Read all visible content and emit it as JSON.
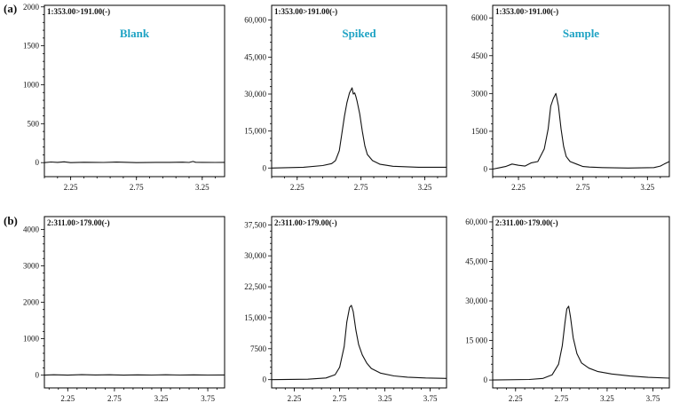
{
  "row_labels": [
    "(a)",
    "(b)"
  ],
  "colors": {
    "title": "#1fa3c4",
    "trace": "#111111"
  },
  "chart_data": [
    {
      "type": "line",
      "row": 0,
      "col": 0,
      "title": "Blank",
      "channel": "1:353.00>191.00(-)",
      "xlim": [
        2.05,
        3.42
      ],
      "ylim": [
        -180,
        2020
      ],
      "x_ticks": [
        2.25,
        2.75,
        3.25
      ],
      "x_tick_labels": [
        "2.25",
        "2.75",
        "3.25"
      ],
      "y_ticks": [
        0,
        500,
        1000,
        1500,
        2000
      ],
      "y_tick_labels": [
        "0",
        "500",
        "1000",
        "1500",
        "2000"
      ],
      "series": [
        {
          "x": [
            2.05,
            2.1,
            2.15,
            2.2,
            2.25,
            2.35,
            2.5,
            2.6,
            2.75,
            2.9,
            3.0,
            3.1,
            3.15,
            3.18,
            3.2,
            3.25,
            3.35,
            3.42
          ],
          "y": [
            0,
            8,
            3,
            10,
            0,
            5,
            2,
            7,
            0,
            4,
            3,
            6,
            2,
            15,
            5,
            3,
            2,
            4
          ]
        }
      ]
    },
    {
      "type": "line",
      "row": 0,
      "col": 1,
      "title": "Spiked",
      "channel": "1:353.00>191.00(-)",
      "xlim": [
        2.05,
        3.42
      ],
      "ylim": [
        -3500,
        66000
      ],
      "x_ticks": [
        2.25,
        2.75,
        3.25
      ],
      "x_tick_labels": [
        "2.25",
        "2.75",
        "3.25"
      ],
      "y_ticks": [
        0,
        15000,
        30000,
        45000,
        60000
      ],
      "y_tick_labels": [
        "0",
        "15,000",
        "30,000",
        "45,000",
        "60,000"
      ],
      "series": [
        {
          "x": [
            2.05,
            2.3,
            2.45,
            2.52,
            2.55,
            2.58,
            2.6,
            2.62,
            2.64,
            2.66,
            2.68,
            2.69,
            2.7,
            2.71,
            2.72,
            2.74,
            2.76,
            2.78,
            2.8,
            2.84,
            2.9,
            3.0,
            3.2,
            3.42
          ],
          "y": [
            0,
            300,
            1000,
            1800,
            3000,
            7000,
            14000,
            21000,
            26500,
            30500,
            32500,
            30000,
            30500,
            29000,
            27000,
            22000,
            15000,
            9000,
            5500,
            3000,
            1500,
            700,
            300,
            300
          ]
        }
      ]
    },
    {
      "type": "line",
      "row": 0,
      "col": 2,
      "title": "Sample",
      "channel": "1:353.00>191.00(-)",
      "xlim": [
        2.05,
        3.42
      ],
      "ylim": [
        -300,
        6500
      ],
      "x_ticks": [
        2.25,
        2.75,
        3.25
      ],
      "x_tick_labels": [
        "2.25",
        "2.75",
        "3.25"
      ],
      "y_ticks": [
        0,
        1500,
        3000,
        4500,
        6000
      ],
      "y_tick_labels": [
        "0",
        "1500",
        "3000",
        "4500",
        "6000"
      ],
      "series": [
        {
          "x": [
            2.05,
            2.1,
            2.15,
            2.2,
            2.25,
            2.3,
            2.35,
            2.4,
            2.45,
            2.48,
            2.5,
            2.52,
            2.54,
            2.56,
            2.58,
            2.6,
            2.62,
            2.65,
            2.7,
            2.75,
            2.8,
            2.9,
            3.0,
            3.1,
            3.2,
            3.3,
            3.35,
            3.38,
            3.42
          ],
          "y": [
            0,
            50,
            100,
            200,
            150,
            120,
            250,
            300,
            800,
            1600,
            2500,
            2800,
            3000,
            2500,
            1600,
            900,
            500,
            300,
            200,
            100,
            80,
            60,
            50,
            40,
            50,
            60,
            120,
            200,
            300
          ]
        }
      ]
    },
    {
      "type": "line",
      "row": 1,
      "col": 0,
      "title": "",
      "channel": "2:311.00>179.00(-)",
      "xlim": [
        2.0,
        3.93
      ],
      "ylim": [
        -350,
        4350
      ],
      "x_ticks": [
        2.25,
        2.75,
        3.25,
        3.75
      ],
      "x_tick_labels": [
        "2.25",
        "2.75",
        "3.25",
        "3.75"
      ],
      "y_ticks": [
        0,
        1000,
        2000,
        3000,
        4000
      ],
      "y_tick_labels": [
        "0",
        "1000",
        "2000",
        "3000",
        "4000"
      ],
      "series": [
        {
          "x": [
            2.0,
            2.1,
            2.25,
            2.4,
            2.55,
            2.7,
            2.85,
            3.0,
            3.15,
            3.3,
            3.45,
            3.6,
            3.75,
            3.93
          ],
          "y": [
            0,
            10,
            0,
            12,
            5,
            10,
            0,
            8,
            3,
            10,
            2,
            9,
            4,
            6
          ]
        }
      ]
    },
    {
      "type": "line",
      "row": 1,
      "col": 1,
      "title": "",
      "channel": "2:311.00>179.00(-)",
      "xlim": [
        2.0,
        3.93
      ],
      "ylim": [
        -2000,
        39500
      ],
      "x_ticks": [
        2.25,
        2.75,
        3.25,
        3.75
      ],
      "x_tick_labels": [
        "2.25",
        "2.75",
        "3.25",
        "3.75"
      ],
      "y_ticks": [
        0,
        7500,
        15000,
        22500,
        30000,
        37500
      ],
      "y_tick_labels": [
        "0",
        "7500",
        "15,000",
        "22,500",
        "30,000",
        "37,500"
      ],
      "series": [
        {
          "x": [
            2.0,
            2.4,
            2.6,
            2.7,
            2.75,
            2.8,
            2.83,
            2.86,
            2.88,
            2.9,
            2.93,
            2.96,
            3.0,
            3.05,
            3.1,
            3.2,
            3.35,
            3.5,
            3.7,
            3.93
          ],
          "y": [
            0,
            100,
            400,
            1200,
            3000,
            8000,
            14000,
            17500,
            18000,
            16500,
            12000,
            8500,
            6000,
            4000,
            2700,
            1600,
            900,
            600,
            400,
            300
          ]
        }
      ]
    },
    {
      "type": "line",
      "row": 1,
      "col": 2,
      "title": "",
      "channel": "2:311.00>179.00(-)",
      "xlim": [
        2.0,
        3.93
      ],
      "ylim": [
        -3000,
        62000
      ],
      "x_ticks": [
        2.25,
        2.75,
        3.25,
        3.75
      ],
      "x_tick_labels": [
        "2.25",
        "2.75",
        "3.25",
        "3.75"
      ],
      "y_ticks": [
        0,
        15000,
        30000,
        45000,
        60000
      ],
      "y_tick_labels": [
        "0",
        "15 000",
        "30,000",
        "45,000",
        "60,000"
      ],
      "series": [
        {
          "x": [
            2.0,
            2.4,
            2.55,
            2.65,
            2.72,
            2.76,
            2.79,
            2.81,
            2.83,
            2.85,
            2.88,
            2.92,
            2.97,
            3.05,
            3.15,
            3.3,
            3.5,
            3.7,
            3.93
          ],
          "y": [
            0,
            200,
            600,
            2000,
            6000,
            13000,
            22000,
            27000,
            28000,
            24000,
            16000,
            10000,
            6500,
            4500,
            3200,
            2300,
            1500,
            1000,
            700
          ]
        }
      ]
    }
  ]
}
